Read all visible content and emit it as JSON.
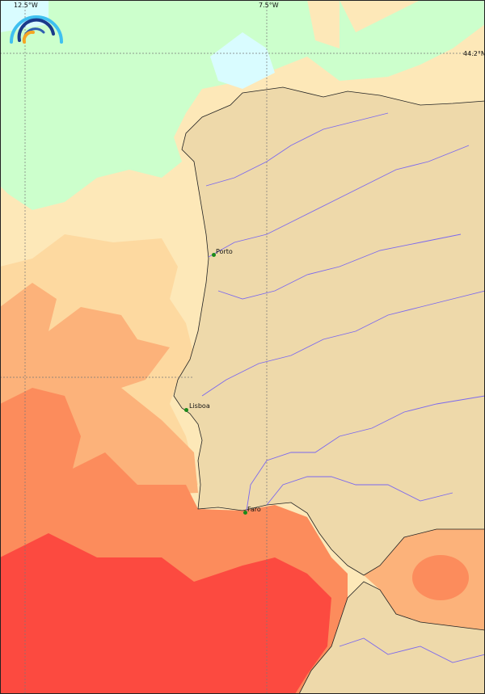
{
  "map": {
    "grid_labels": {
      "lon_west": "12.5°W",
      "lon_east": "7.5°W",
      "lat": "44.2°N"
    },
    "cities": [
      {
        "name": "Porto"
      },
      {
        "name": "Lisboa"
      },
      {
        "name": "Faro"
      }
    ],
    "logo": "rainbow-arcs-logo",
    "colors": {
      "land": "#eed9aa",
      "river": "#7b68ee",
      "sea_coolest": "#ccffcc",
      "sea_cyan": "#d9fcff",
      "sea_light": "#fde8b8",
      "sea_tan": "#fdd9a0",
      "sea_salmon": "#fcb27a",
      "sea_orange": "#fc8c5c",
      "sea_red": "#fc4a40",
      "city_marker": "#1a8a1a"
    }
  }
}
